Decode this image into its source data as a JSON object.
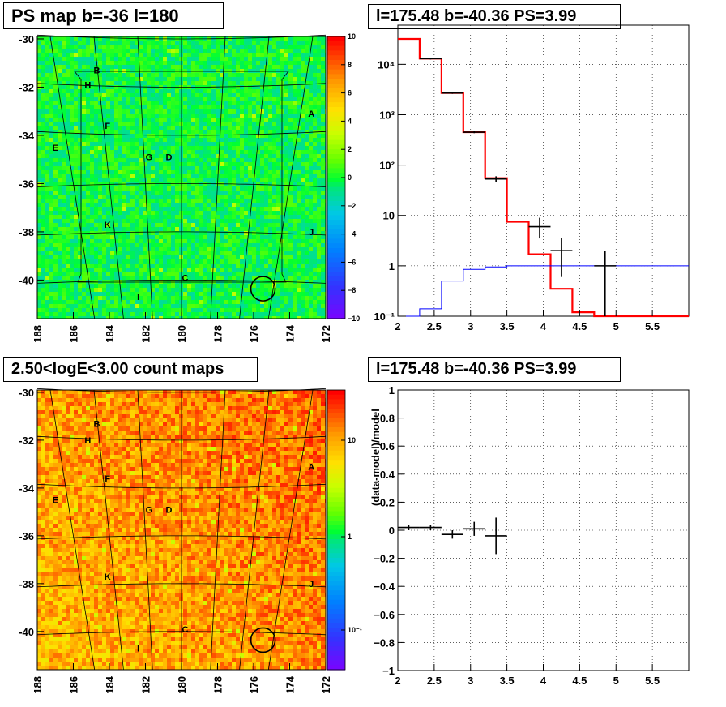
{
  "titles": {
    "top_left": "PS map b=-36 l=180",
    "top_right": "l=175.48 b=-40.36 PS=3.99",
    "bottom_left": "2.50<logE<3.00 count maps",
    "bottom_right": "l=175.48 b=-40.36 PS=3.99"
  },
  "chart_data": [
    {
      "type": "heatmap",
      "title": "PS map b=-36 l=180",
      "x_ticks": [
        "188",
        "186",
        "184",
        "182",
        "180",
        "178",
        "176",
        "174",
        "172"
      ],
      "y_ticks": [
        "-30",
        "-32",
        "-34",
        "-36",
        "-38",
        "-40"
      ],
      "xlim": [
        188,
        172
      ],
      "ylim": [
        -41.6,
        -29.9
      ],
      "colorbar_ticks": [
        "10",
        "8",
        "6",
        "4",
        "2",
        "0",
        "−2",
        "−4",
        "−6",
        "−8",
        "−10"
      ],
      "colorbar_range": [
        -10,
        10
      ],
      "dominant_value": 0,
      "source_labels": [
        {
          "label": "B",
          "l": 184.7,
          "b": -31.3
        },
        {
          "label": "H",
          "l": 185.2,
          "b": -31.9
        },
        {
          "label": "A",
          "l": 172.8,
          "b": -33.1
        },
        {
          "label": "F",
          "l": 184.1,
          "b": -33.6
        },
        {
          "label": "E",
          "l": 187.0,
          "b": -34.5
        },
        {
          "label": "G",
          "l": 181.8,
          "b": -34.9
        },
        {
          "label": "D",
          "l": 180.7,
          "b": -34.9
        },
        {
          "label": "K",
          "l": 184.1,
          "b": -37.7
        },
        {
          "label": "J",
          "l": 172.8,
          "b": -38.0
        },
        {
          "label": "C",
          "l": 179.8,
          "b": -39.9
        },
        {
          "label": "I",
          "l": 182.4,
          "b": -40.7
        }
      ],
      "circle": {
        "l": 175.48,
        "b": -40.36
      }
    },
    {
      "type": "line",
      "title": "l=175.48 b=-40.36 PS=3.99",
      "log_y": true,
      "xlim": [
        2,
        6
      ],
      "ylim": [
        0.1,
        60000
      ],
      "x_ticks": [
        "2",
        "2.5",
        "3",
        "3.5",
        "4",
        "4.5",
        "5",
        "5.5"
      ],
      "y_ticks": [
        "10⁻¹",
        "1",
        "10",
        "10²",
        "10³",
        "10⁴"
      ],
      "grid": true,
      "series": [
        {
          "color": "#ff0000",
          "style": "step",
          "edges": [
            2.0,
            2.3,
            2.6,
            2.9,
            3.2,
            3.5,
            3.8,
            4.1,
            4.4,
            4.7,
            5.0,
            6.0
          ],
          "values": [
            32000,
            13000,
            2700,
            450,
            55,
            7.5,
            1.7,
            0.35,
            0.12,
            0.1,
            0.1
          ]
        },
        {
          "color": "#0000ff",
          "style": "step",
          "edges": [
            2.0,
            2.3,
            2.6,
            2.9,
            3.2,
            3.5,
            3.8,
            4.1,
            4.4,
            6.0
          ],
          "values": [
            0.1,
            0.14,
            0.5,
            0.85,
            0.95,
            1.0,
            1.0,
            1.0,
            1.0
          ]
        }
      ],
      "data_points": [
        {
          "x": 2.45,
          "y": 13000,
          "xerr": 0.15,
          "ylo": 12500,
          "yhi": 13500
        },
        {
          "x": 2.75,
          "y": 2700,
          "xerr": 0.15,
          "ylo": 2600,
          "yhi": 2800
        },
        {
          "x": 3.05,
          "y": 450,
          "xerr": 0.15,
          "ylo": 430,
          "yhi": 470
        },
        {
          "x": 3.35,
          "y": 53,
          "xerr": 0.15,
          "ylo": 46,
          "yhi": 60
        },
        {
          "x": 3.95,
          "y": 6,
          "xerr": 0.15,
          "ylo": 3.5,
          "yhi": 9
        },
        {
          "x": 4.25,
          "y": 2,
          "xerr": 0.15,
          "ylo": 0.6,
          "yhi": 3.6
        },
        {
          "x": 4.85,
          "y": 1,
          "xerr": 0.15,
          "ylo": 0.1,
          "yhi": 2
        }
      ]
    },
    {
      "type": "heatmap",
      "title": "2.50<logE<3.00 count maps",
      "x_ticks": [
        "188",
        "186",
        "184",
        "182",
        "180",
        "178",
        "176",
        "174",
        "172"
      ],
      "y_ticks": [
        "-30",
        "-32",
        "-34",
        "-36",
        "-38",
        "-40"
      ],
      "xlim": [
        188,
        172
      ],
      "ylim": [
        -41.6,
        -29.9
      ],
      "colorbar_ticks": [
        "10",
        "1",
        "10⁻¹"
      ],
      "colorbar_log": true,
      "source_labels": [
        {
          "label": "B",
          "l": 184.7,
          "b": -31.3
        },
        {
          "label": "H",
          "l": 185.2,
          "b": -32.0
        },
        {
          "label": "A",
          "l": 172.8,
          "b": -33.1
        },
        {
          "label": "F",
          "l": 184.1,
          "b": -33.6
        },
        {
          "label": "E",
          "l": 187.0,
          "b": -34.5
        },
        {
          "label": "G",
          "l": 181.8,
          "b": -34.9
        },
        {
          "label": "D",
          "l": 180.7,
          "b": -34.9
        },
        {
          "label": "K",
          "l": 184.1,
          "b": -37.7
        },
        {
          "label": "J",
          "l": 172.8,
          "b": -38.0
        },
        {
          "label": "C",
          "l": 179.8,
          "b": -39.9
        },
        {
          "label": "I",
          "l": 182.4,
          "b": -40.7
        }
      ],
      "circle": {
        "l": 175.48,
        "b": -40.36
      }
    },
    {
      "type": "scatter",
      "title": "l=175.48 b=-40.36 PS=3.99",
      "ylabel": "(data-model)/model",
      "xlim": [
        2,
        6
      ],
      "ylim": [
        -1,
        1
      ],
      "x_ticks": [
        "2",
        "2.5",
        "3",
        "3.5",
        "4",
        "4.5",
        "5",
        "5.5"
      ],
      "y_ticks": [
        "1",
        "0.8",
        "0.6",
        "0.4",
        "0.2",
        "0",
        "−0.2",
        "−0.4",
        "−0.6",
        "−0.8",
        "−1"
      ],
      "grid": true,
      "points": [
        {
          "x": 2.15,
          "y": 0.02,
          "xerr": 0.15,
          "yerr": 0.02
        },
        {
          "x": 2.45,
          "y": 0.02,
          "xerr": 0.15,
          "yerr": 0.02
        },
        {
          "x": 2.75,
          "y": -0.03,
          "xerr": 0.15,
          "yerr": 0.03
        },
        {
          "x": 3.05,
          "y": 0.01,
          "xerr": 0.15,
          "yerr": 0.05
        },
        {
          "x": 3.35,
          "y": -0.04,
          "xerr": 0.15,
          "yerr": 0.13
        }
      ]
    }
  ]
}
